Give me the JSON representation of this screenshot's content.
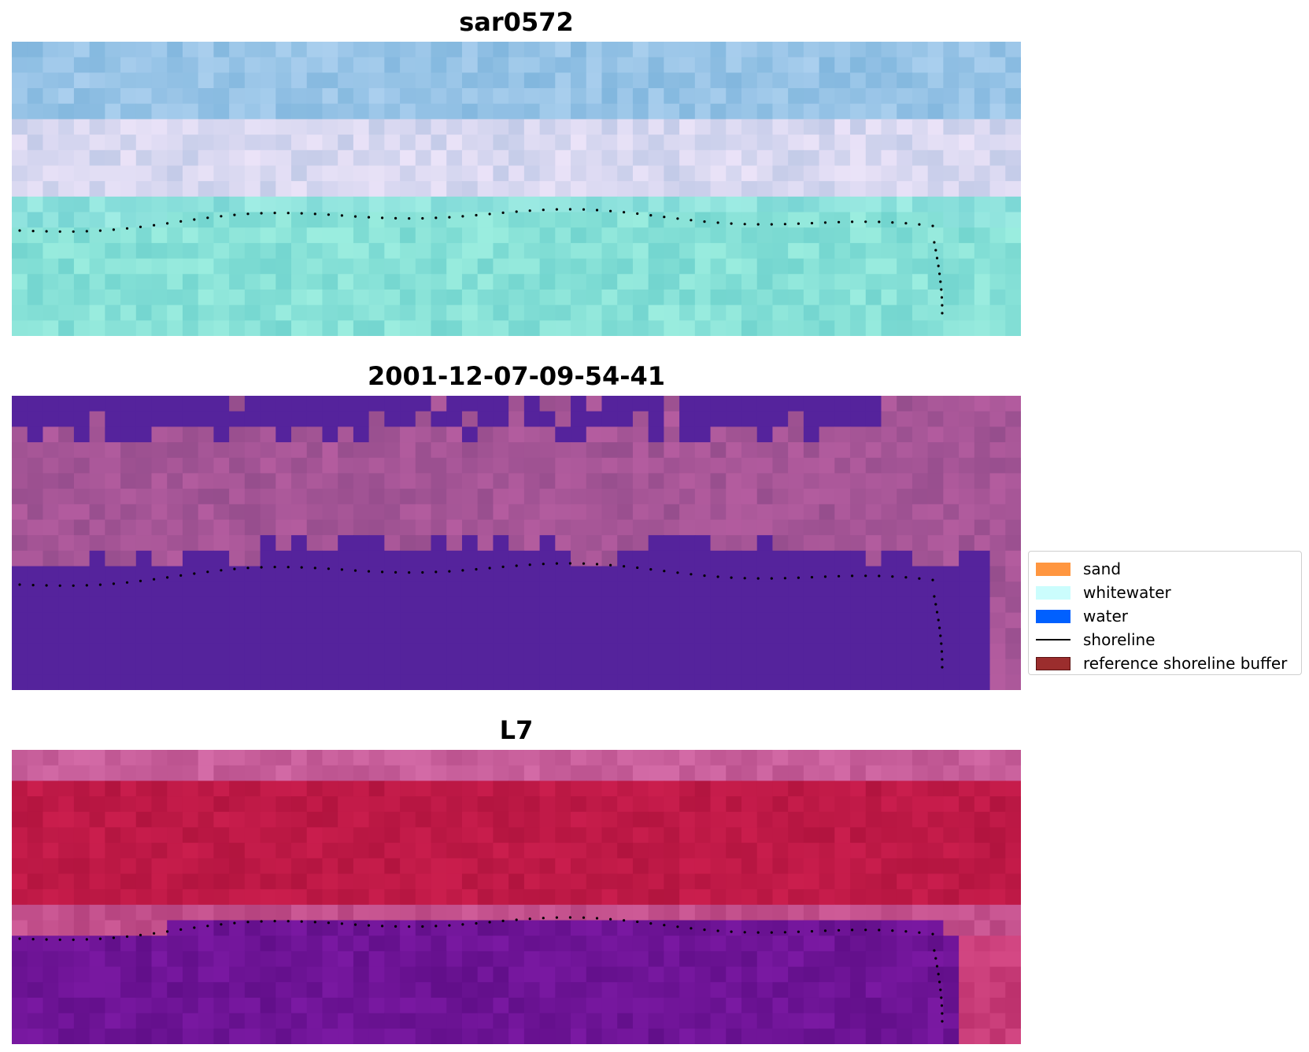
{
  "panels": [
    {
      "title": "sar0572",
      "style": "rgb-composite"
    },
    {
      "title": "2001-12-07-09-54-41",
      "style": "classified"
    },
    {
      "title": "L7",
      "style": "ndwi"
    }
  ],
  "legend": {
    "placement": "right",
    "items": [
      {
        "label": "sand",
        "kind": "patch",
        "color": "#ff9640"
      },
      {
        "label": "whitewater",
        "kind": "patch",
        "color": "#cbfdfd"
      },
      {
        "label": "water",
        "kind": "patch",
        "color": "#0060ff"
      },
      {
        "label": "shoreline",
        "kind": "line",
        "color": "#000000"
      },
      {
        "label": "reference shoreline buffer",
        "kind": "patch",
        "color": "#9b2d2d"
      }
    ]
  },
  "colors": {
    "classified_water": "#55239c",
    "shoreline_points": "#000000"
  }
}
